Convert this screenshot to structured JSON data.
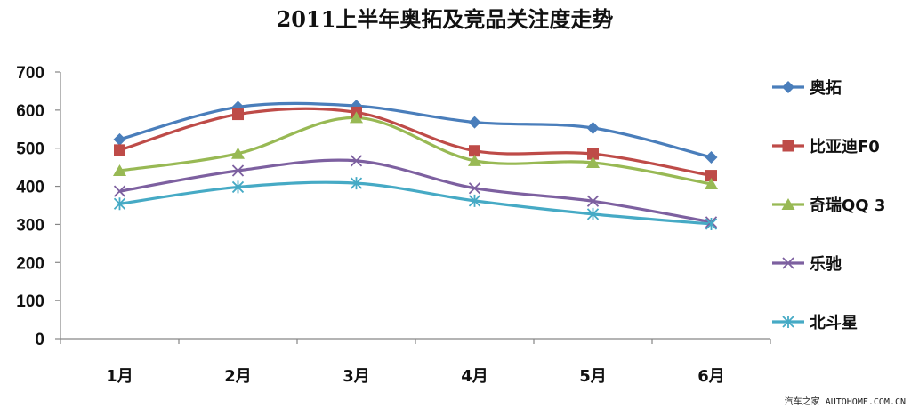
{
  "chart_data": {
    "type": "line",
    "title": "2011上半年奥拓及竞品关注度走势",
    "categories": [
      "1月",
      "2月",
      "3月",
      "4月",
      "5月",
      "6月"
    ],
    "ylim": [
      0,
      700
    ],
    "yticks": [
      "0",
      "100",
      "200",
      "300",
      "400",
      "500",
      "600",
      "700"
    ],
    "grid": false,
    "legend_position": "right",
    "smooth": true,
    "series": [
      {
        "name": "奥拓",
        "values": [
          523,
          608,
          611,
          568,
          553,
          476
        ],
        "color": "#4A7EBB",
        "marker": "diamond"
      },
      {
        "name": "比亚迪F0",
        "values": [
          495,
          589,
          594,
          493,
          485,
          428
        ],
        "color": "#BE4B48",
        "marker": "square"
      },
      {
        "name": "奇瑞QQ 3",
        "values": [
          441,
          486,
          580,
          467,
          462,
          406
        ],
        "color": "#98B954",
        "marker": "triangle"
      },
      {
        "name": "乐驰",
        "values": [
          387,
          441,
          467,
          395,
          361,
          306
        ],
        "color": "#7D60A0",
        "marker": "x"
      },
      {
        "name": "北斗星",
        "values": [
          354,
          398,
          408,
          362,
          327,
          301
        ],
        "color": "#46AAC5",
        "marker": "star"
      }
    ]
  },
  "watermark": "汽车之家 AUTOHOME.COM.CN"
}
